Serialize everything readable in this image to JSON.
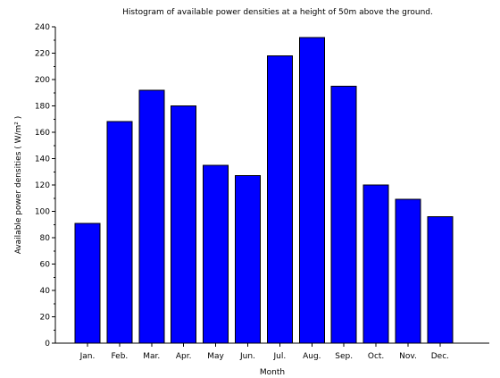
{
  "chart_data": {
    "type": "bar",
    "title": "Histogram of available power densities at a height of 50m above the ground.",
    "xlabel": "Month",
    "ylabel": "Available power densities ( W/m² )",
    "categories": [
      "Jan.",
      "Feb.",
      "Mar.",
      "Apr.",
      "May",
      "Jun.",
      "Jul.",
      "Aug.",
      "Sep.",
      "Oct.",
      "Nov.",
      "Dec."
    ],
    "values": [
      91,
      168,
      192,
      180,
      135,
      127,
      218,
      232,
      195,
      120,
      109,
      96
    ],
    "ylim": [
      0,
      240
    ],
    "yticks": [
      0,
      20,
      40,
      60,
      80,
      100,
      120,
      140,
      160,
      180,
      200,
      220,
      240
    ],
    "bar_color": "#0000ff",
    "grid": false,
    "legend": "none"
  }
}
